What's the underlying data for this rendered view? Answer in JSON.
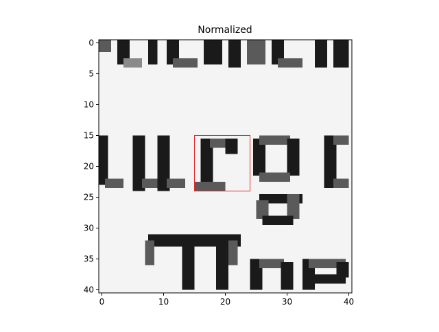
{
  "chart_data": {
    "type": "heatmap",
    "title": "Normalized",
    "xlabel": "",
    "ylabel": "",
    "colormap": "gray",
    "image_shape": [
      41,
      41
    ],
    "image_content": "Grayscale crop of scanned serif text showing fragments of letters: a top row of letter bottoms, the middle word fragment 'urge', and the bottom word fragment 'The'",
    "xlim": [
      -0.5,
      40.5
    ],
    "ylim": [
      40.5,
      -0.5
    ],
    "xticks": [
      0,
      10,
      20,
      30,
      40
    ],
    "yticks": [
      0,
      5,
      10,
      15,
      20,
      25,
      30,
      35,
      40
    ],
    "xtick_labels": [
      "0",
      "10",
      "20",
      "30",
      "40"
    ],
    "ytick_labels": [
      "0",
      "5",
      "10",
      "15",
      "20",
      "25",
      "30",
      "35",
      "40"
    ],
    "annotation": {
      "type": "rectangle",
      "color": "#e8262a",
      "x": [
        15,
        24
      ],
      "y": [
        15,
        24
      ]
    }
  }
}
